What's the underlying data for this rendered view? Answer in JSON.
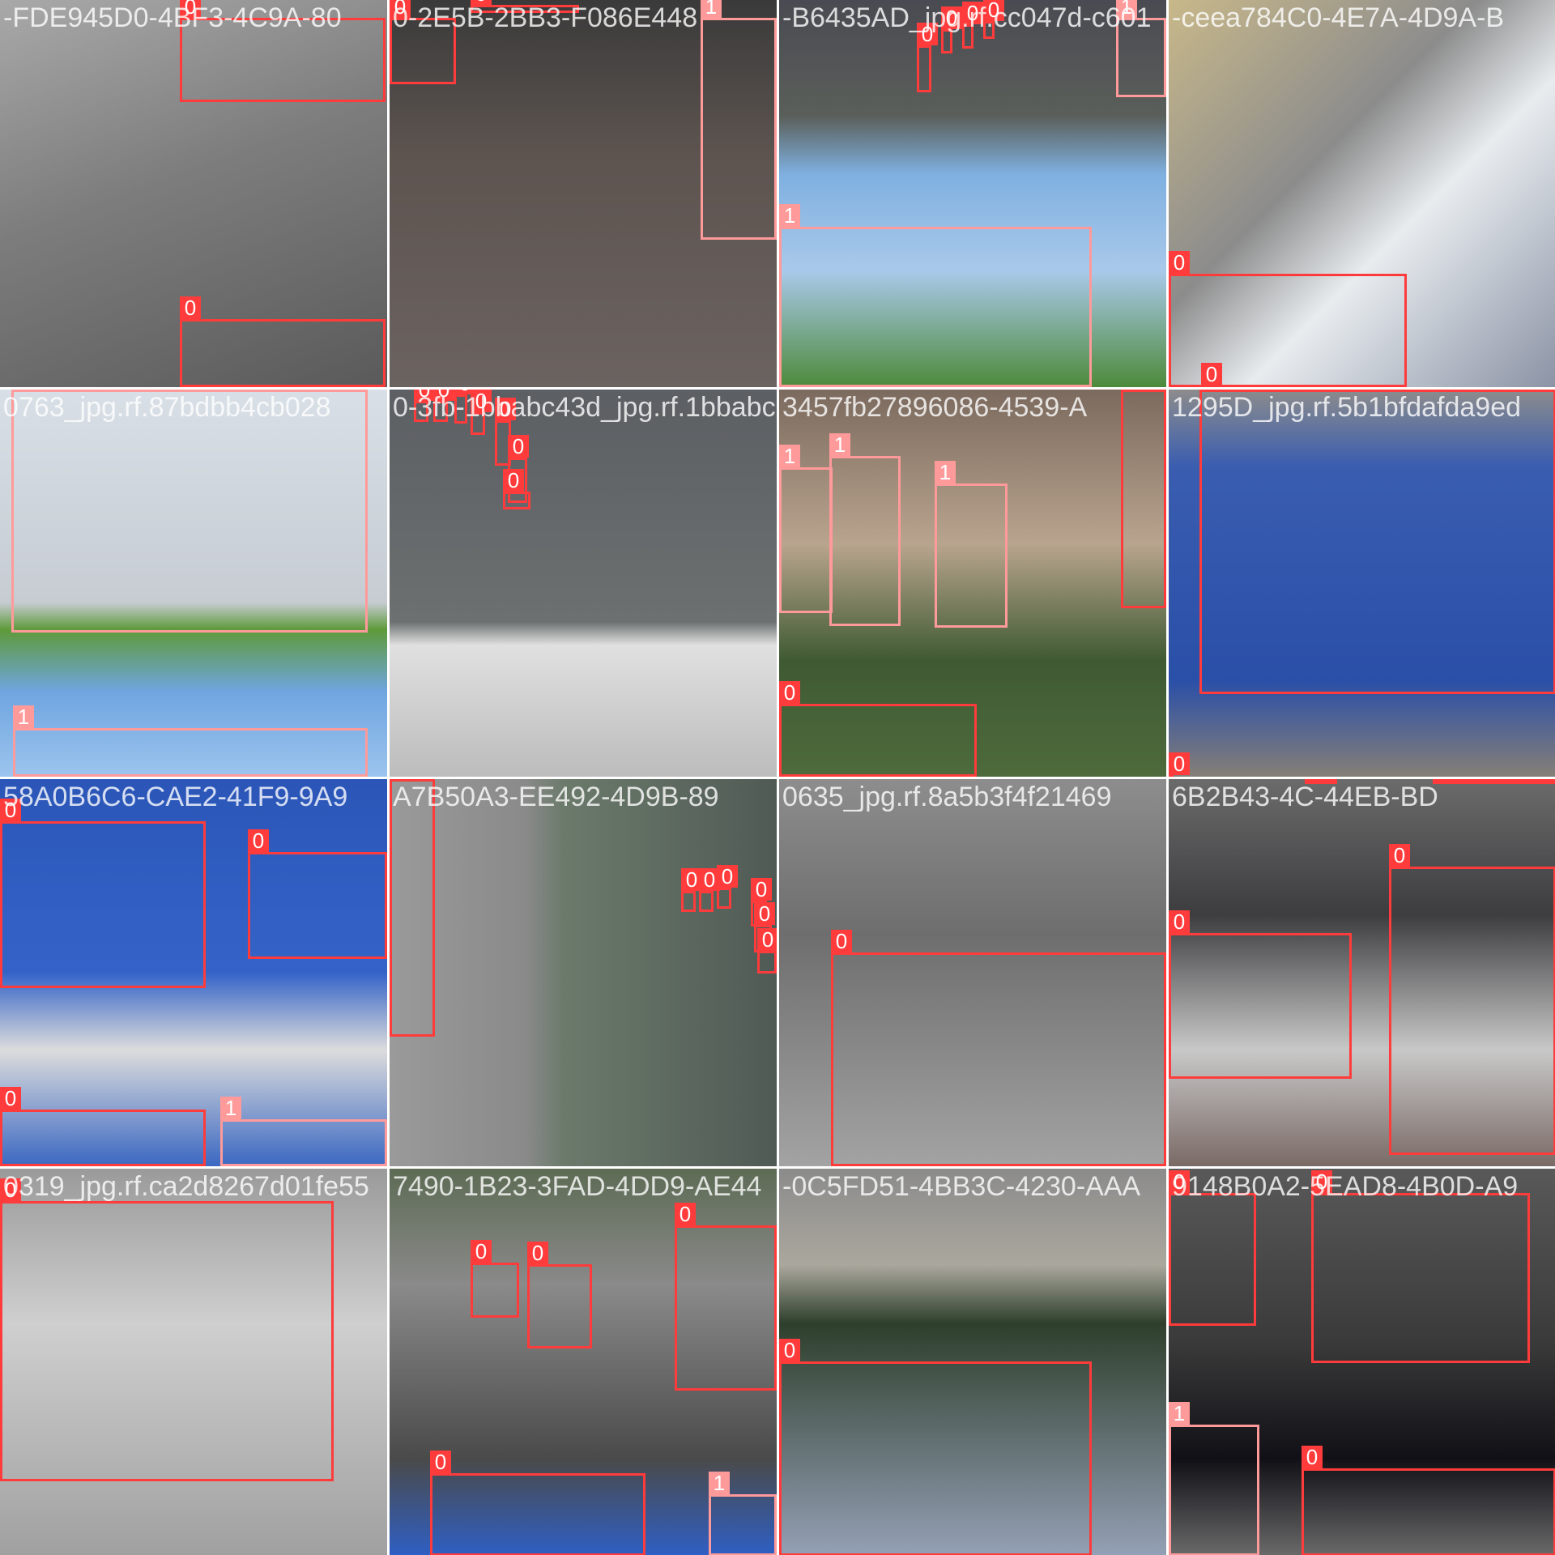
{
  "tiles": [
    {
      "title": "-FDE945D0-4BF3-4C9A-80",
      "boxes": [
        {
          "label": "0"
        },
        {
          "label": "0"
        }
      ]
    },
    {
      "title": "0-2E5B-2BB3-F086E448",
      "boxes": [
        {
          "label": "0"
        },
        {
          "label": "0"
        },
        {
          "label": "1"
        }
      ]
    },
    {
      "title": "-B6435AD_jpg.rf.cc047d-c601",
      "boxes": [
        {
          "label": "1"
        },
        {
          "label": "1"
        },
        {
          "label": "0"
        },
        {
          "label": "0"
        },
        {
          "label": "0"
        },
        {
          "label": "0"
        }
      ]
    },
    {
      "title": "-ceea784C0-4E7A-4D9A-B",
      "boxes": [
        {
          "label": "0"
        },
        {
          "label": "0"
        }
      ]
    },
    {
      "title": "0763_jpg.rf.87bdbb4cb028",
      "boxes": [
        {
          "label": "1"
        },
        {
          "label": "1"
        }
      ]
    },
    {
      "title": "0-3fb-1bbabc43d_jpg.rf.1bbabc",
      "boxes": [
        {
          "label": "0"
        },
        {
          "label": "0"
        },
        {
          "label": "0"
        },
        {
          "label": "0"
        },
        {
          "label": "0"
        },
        {
          "label": "0"
        },
        {
          "label": "0"
        }
      ]
    },
    {
      "title": "3457fb27896086-4539-A",
      "boxes": [
        {
          "label": "1"
        },
        {
          "label": "1"
        },
        {
          "label": "1"
        },
        {
          "label": "0"
        },
        {
          "label": "0"
        }
      ]
    },
    {
      "title": "1295D_jpg.rf.5b1bfdafda9ed",
      "boxes": [
        {
          "label": "0"
        },
        {
          "label": "0"
        }
      ]
    },
    {
      "title": "58A0B6C6-CAE2-41F9-9A9",
      "boxes": [
        {
          "label": "0"
        },
        {
          "label": "0"
        },
        {
          "label": "0"
        },
        {
          "label": "1"
        }
      ]
    },
    {
      "title": "A7B50A3-EE492-4D9B-89",
      "boxes": [
        {
          "label": "0"
        },
        {
          "label": "0"
        },
        {
          "label": "0"
        },
        {
          "label": "0"
        },
        {
          "label": "0"
        },
        {
          "label": "0"
        },
        {
          "label": "0"
        }
      ]
    },
    {
      "title": "0635_jpg.rf.8a5b3f4f21469",
      "boxes": [
        {
          "label": "0"
        }
      ]
    },
    {
      "title": "6B2B43-4C-44EB-BD",
      "boxes": [
        {
          "label": "0"
        },
        {
          "label": "0"
        },
        {
          "label": "0"
        },
        {
          "label": "0"
        }
      ]
    },
    {
      "title": "0319_jpg.rf.ca2d8267d01fe55",
      "boxes": [
        {
          "label": "0"
        }
      ]
    },
    {
      "title": "7490-1B23-3FAD-4DD9-AE44",
      "boxes": [
        {
          "label": "0"
        },
        {
          "label": "0"
        },
        {
          "label": "0"
        },
        {
          "label": "0"
        },
        {
          "label": "1"
        }
      ]
    },
    {
      "title": "-0C5FD51-4BB3C-4230-AAA",
      "boxes": [
        {
          "label": "0"
        }
      ]
    },
    {
      "title": "9148B0A2-5EAD8-4B0D-A9",
      "boxes": [
        {
          "label": "0"
        },
        {
          "label": "0"
        },
        {
          "label": "1"
        },
        {
          "label": "0"
        }
      ]
    }
  ]
}
